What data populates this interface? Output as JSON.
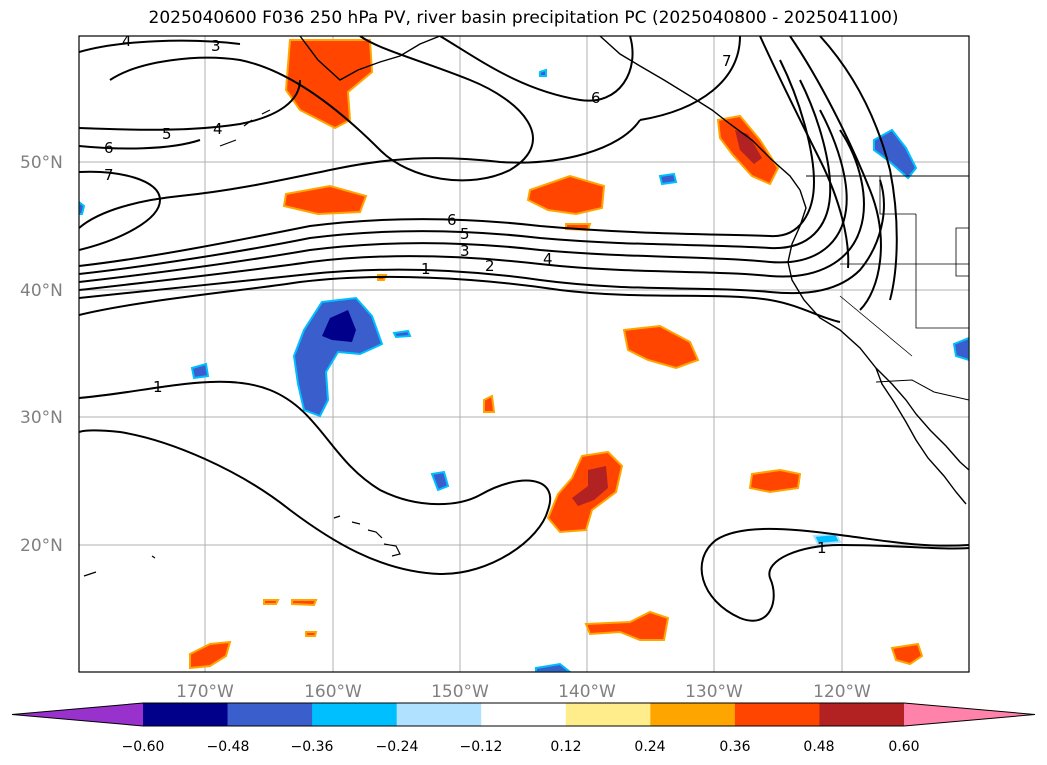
{
  "title": "2025040600 F036 250 hPa PV, river basin precipitation PC (2025040800 - 2025041100)",
  "map": {
    "lon_labels": [
      "170°W",
      "160°W",
      "150°W",
      "140°W",
      "130°W",
      "120°W"
    ],
    "lat_labels": [
      "50°N",
      "40°N",
      "30°N",
      "20°N"
    ],
    "pv_contour_labels": [
      "4",
      "3",
      "6",
      "5",
      "4",
      "7",
      "6",
      "5",
      "4",
      "3",
      "2",
      "1",
      "7",
      "6",
      "1",
      "1"
    ],
    "grid": true
  },
  "colorbar": {
    "ticks": [
      "−0.60",
      "−0.48",
      "−0.36",
      "−0.24",
      "−0.12",
      "0.12",
      "0.24",
      "0.36",
      "0.48",
      "0.60"
    ],
    "colors": [
      "#9932cc",
      "#00008b",
      "#3a5fcd",
      "#00bfff",
      "#b0e2ff",
      "#ffffff",
      "#ffec8b",
      "#ffa500",
      "#ff4500",
      "#b22222",
      "#ff82ab"
    ]
  },
  "colors": {
    "positive_core": "#b22222",
    "positive": "#ff4500",
    "positive_edge": "#ffa500",
    "positive_outer": "#ffec8b",
    "negative_core": "#00008b",
    "negative": "#3a5fcd",
    "negative_edge": "#00bfff",
    "negative_outer": "#b0e2ff"
  }
}
